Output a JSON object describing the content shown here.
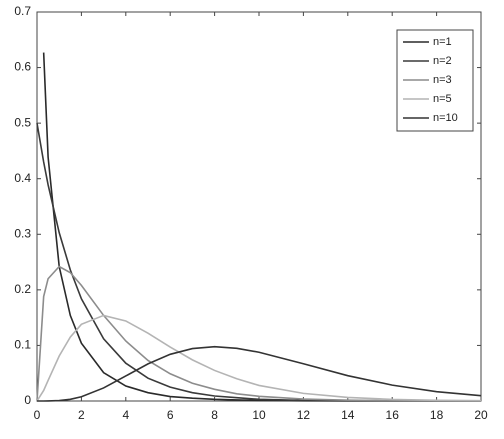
{
  "chart_data": {
    "type": "line",
    "x": [
      0,
      0.3,
      0.5,
      1,
      1.5,
      2,
      3,
      4,
      5,
      6,
      7,
      8,
      9,
      10,
      12,
      14,
      16,
      18,
      20
    ],
    "series": [
      {
        "name": "n=1",
        "color": "#2a2a2a",
        "values": [
          null,
          0.627,
          0.439,
          0.242,
          0.154,
          0.104,
          0.051,
          0.027,
          0.015,
          0.008,
          0.005,
          0.003,
          0.002,
          0.001,
          0.0003,
          0.0001,
          0,
          0,
          0
        ]
      },
      {
        "name": "n=2",
        "color": "#3a3a3a",
        "values": [
          0.5,
          0.43,
          0.389,
          0.303,
          0.236,
          0.184,
          0.112,
          0.068,
          0.041,
          0.025,
          0.015,
          0.009,
          0.006,
          0.003,
          0.001,
          0.0005,
          0.0002,
          0.0001,
          0
        ]
      },
      {
        "name": "n=3",
        "color": "#8c8c8c",
        "values": [
          0,
          0.188,
          0.22,
          0.242,
          0.231,
          0.208,
          0.154,
          0.108,
          0.073,
          0.049,
          0.032,
          0.021,
          0.013,
          0.0085,
          0.0034,
          0.0014,
          0.0005,
          0.0002,
          0.0001
        ]
      },
      {
        "name": "n=5",
        "color": "#b4b4b4",
        "values": [
          0,
          0.019,
          0.037,
          0.081,
          0.115,
          0.138,
          0.154,
          0.144,
          0.122,
          0.097,
          0.074,
          0.055,
          0.04,
          0.028,
          0.0137,
          0.0064,
          0.0029,
          0.0012,
          0.0005
        ]
      },
      {
        "name": "n=10",
        "color": "#333333",
        "values": [
          0,
          0,
          0.0001,
          0.0008,
          0.0031,
          0.0077,
          0.0235,
          0.0451,
          0.0668,
          0.084,
          0.0944,
          0.0977,
          0.0948,
          0.0877,
          0.067,
          0.0456,
          0.0286,
          0.0168,
          0.0095
        ]
      }
    ],
    "xlim": [
      0,
      20
    ],
    "xticks": [
      0,
      2,
      4,
      6,
      8,
      10,
      12,
      14,
      16,
      18,
      20
    ],
    "ylim": [
      0,
      0.7
    ],
    "yticks": [
      0,
      0.1,
      0.2,
      0.3,
      0.4,
      0.5,
      0.6,
      0.7
    ],
    "legend": "upper right",
    "grid": false
  }
}
